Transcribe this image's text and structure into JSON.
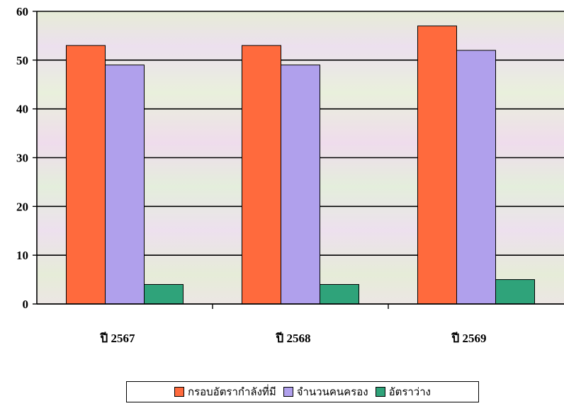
{
  "chart_data": {
    "type": "bar",
    "categories": [
      "ปี   2567",
      "ปี   2568",
      "ปี   2569"
    ],
    "series": [
      {
        "name": "กรอบอัตรากำลังที่มี",
        "values": [
          53,
          53,
          57
        ],
        "color": "#ff6a3d"
      },
      {
        "name": "จำนวนคนครอง",
        "values": [
          49,
          49,
          52
        ],
        "color": "#b0a0ec"
      },
      {
        "name": "อัตราว่าง",
        "values": [
          4,
          4,
          5
        ],
        "color": "#2fa37a"
      }
    ],
    "ylim": [
      0,
      60
    ],
    "yticks": [
      "0",
      "10",
      "20",
      "30",
      "40",
      "50",
      "60"
    ],
    "grid": true,
    "legend_position": "bottom"
  }
}
